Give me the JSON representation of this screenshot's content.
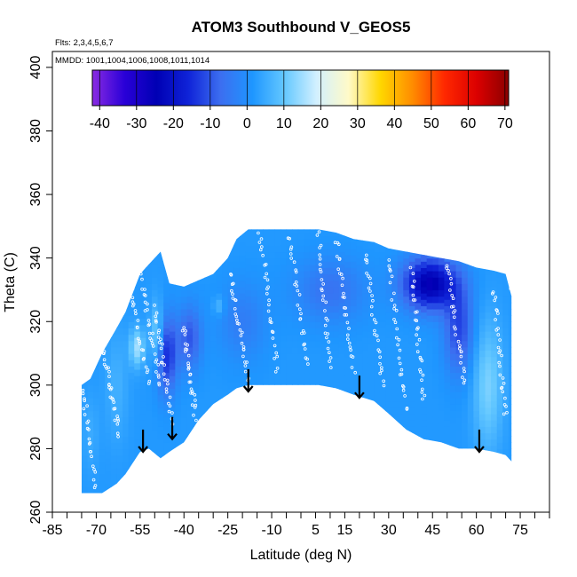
{
  "chart_data": {
    "type": "heatmap",
    "title": "ATOM3 Southbound V_GEOS5",
    "flights_note": "Flts: 2,3,4,5,6,7",
    "dates_note": "MMDD: 1001,1004,1006,1008,1011,1014",
    "xlabel": "Latitude (deg N)",
    "ylabel": "Theta (C)",
    "xlim": [
      -85,
      85
    ],
    "ylim": [
      260,
      405
    ],
    "x_tick_values": [
      -85,
      -70,
      -55,
      -40,
      -25,
      -10,
      5,
      15,
      30,
      45,
      60,
      75
    ],
    "x_tick_labels": [
      "-85",
      "-70",
      "-55",
      "-40",
      "-25",
      "-10",
      "5",
      "15",
      "30",
      "45",
      "60",
      "75"
    ],
    "x_minor_ticks": [
      -80,
      -75,
      -65,
      -60,
      -50,
      -45,
      -35,
      -30,
      -20,
      -15,
      -5,
      0,
      10,
      20,
      25,
      35,
      40,
      50,
      55,
      65,
      70,
      80,
      85
    ],
    "y_tick_values": [
      260,
      280,
      300,
      320,
      340,
      360,
      380,
      400
    ],
    "y_tick_labels": [
      "260",
      "280",
      "300",
      "320",
      "340",
      "360",
      "380",
      "400"
    ],
    "colorbar": {
      "min": -42,
      "max": 71,
      "tick_values": [
        -40,
        -30,
        -20,
        -10,
        0,
        10,
        20,
        30,
        40,
        50,
        60,
        70
      ],
      "tick_labels": [
        "-40",
        "-30",
        "-20",
        "-10",
        "0",
        "10",
        "20",
        "30",
        "40",
        "50",
        "60",
        "70"
      ],
      "colors": [
        "#8a2be2",
        "#2a00d8",
        "#0000b4",
        "#0f23d8",
        "#3c6ef0",
        "#1e96ff",
        "#64c8ff",
        "#d2f0ff",
        "#fffac8",
        "#ffd700",
        "#ff8c00",
        "#ff2800",
        "#dc0000",
        "#8b0000"
      ]
    },
    "domain": {
      "lat": [
        -75,
        -72,
        -68,
        -63,
        -60,
        -55,
        -52,
        -48,
        -45,
        -40,
        -35,
        -30,
        -25,
        -22,
        -18,
        -12,
        -6,
        0,
        6,
        12,
        18,
        25,
        30,
        36,
        42,
        48,
        54,
        60,
        66,
        70,
        72
      ],
      "theta_top": [
        300,
        302,
        310,
        318,
        323,
        335,
        338,
        342,
        332,
        331,
        333,
        335,
        340,
        346,
        349,
        349,
        349,
        349,
        349,
        348,
        346,
        345,
        343,
        342,
        341,
        340,
        339,
        337,
        336,
        335,
        328
      ],
      "theta_bottom": [
        266,
        266,
        266,
        269,
        272,
        279,
        280,
        277,
        279,
        282,
        289,
        294,
        297,
        299,
        300,
        300,
        300,
        300,
        300,
        299,
        297,
        295,
        291,
        286,
        283,
        282,
        280,
        280,
        279,
        278,
        276
      ]
    },
    "field_anomalies": [
      {
        "lat": 44,
        "theta": 332,
        "value": -26,
        "lat_radius": 9,
        "theta_radius": 8
      },
      {
        "lat": 54,
        "theta": 318,
        "value": -12,
        "lat_radius": 5,
        "theta_radius": 14
      },
      {
        "lat": -49,
        "theta": 316,
        "value": 14,
        "lat_radius": 2.5,
        "theta_radius": 10
      },
      {
        "lat": -56,
        "theta": 312,
        "value": 15,
        "lat_radius": 2.5,
        "theta_radius": 6
      },
      {
        "lat": -46,
        "theta": 310,
        "value": -16,
        "lat_radius": 3.5,
        "theta_radius": 12
      },
      {
        "lat": -38,
        "theta": 315,
        "value": -10,
        "lat_radius": 4,
        "theta_radius": 10
      },
      {
        "lat": -28,
        "theta": 325,
        "value": 8,
        "lat_radius": 2,
        "theta_radius": 3
      },
      {
        "lat": 64,
        "theta": 300,
        "value": 12,
        "lat_radius": 5,
        "theta_radius": 20
      },
      {
        "lat": -63,
        "theta": 300,
        "value": 6,
        "lat_radius": 4,
        "theta_radius": 18
      },
      {
        "lat": 10,
        "theta": 330,
        "value": -6,
        "lat_radius": 12,
        "theta_radius": 10
      },
      {
        "lat": -72,
        "theta": 285,
        "value": 5,
        "lat_radius": 3,
        "theta_radius": 12
      },
      {
        "lat": -20,
        "theta": 320,
        "value": -4,
        "lat_radius": 8,
        "theta_radius": 12
      }
    ],
    "arrows": [
      {
        "lat": -54,
        "theta_top": 286,
        "theta_tip": 279
      },
      {
        "lat": -44,
        "theta_top": 290,
        "theta_tip": 283
      },
      {
        "lat": -18,
        "theta_top": 305,
        "theta_tip": 298
      },
      {
        "lat": 20,
        "theta_top": 303,
        "theta_tip": 296
      },
      {
        "lat": 61,
        "theta_top": 286,
        "theta_tip": 279
      }
    ],
    "flight_tracks": [
      {
        "lat_start": -76,
        "theta_start": 308,
        "lat_end": -70,
        "theta_end": 268
      },
      {
        "lat_start": -68,
        "theta_start": 312,
        "lat_end": -62,
        "theta_end": 285
      },
      {
        "lat_start": -60,
        "theta_start": 340,
        "lat_end": -52,
        "theta_end": 300
      },
      {
        "lat_start": -55,
        "theta_start": 335,
        "lat_end": -48,
        "theta_end": 300
      },
      {
        "lat_start": -50,
        "theta_start": 325,
        "lat_end": -44,
        "theta_end": 288
      },
      {
        "lat_start": -40,
        "theta_start": 318,
        "lat_end": -36,
        "theta_end": 290
      },
      {
        "lat_start": -24,
        "theta_start": 335,
        "lat_end": -18,
        "theta_end": 302
      },
      {
        "lat_start": -14,
        "theta_start": 348,
        "lat_end": -8,
        "theta_end": 305
      },
      {
        "lat_start": -4,
        "theta_start": 349,
        "lat_end": 2,
        "theta_end": 306
      },
      {
        "lat_start": 6,
        "theta_start": 348,
        "lat_end": 10,
        "theta_end": 305
      },
      {
        "lat_start": 12,
        "theta_start": 346,
        "lat_end": 18,
        "theta_end": 305
      },
      {
        "lat_start": 22,
        "theta_start": 342,
        "lat_end": 28,
        "theta_end": 300
      },
      {
        "lat_start": 30,
        "theta_start": 340,
        "lat_end": 36,
        "theta_end": 292
      },
      {
        "lat_start": 38,
        "theta_start": 336,
        "lat_end": 42,
        "theta_end": 295
      },
      {
        "lat_start": 50,
        "theta_start": 338,
        "lat_end": 56,
        "theta_end": 300
      },
      {
        "lat_start": 66,
        "theta_start": 330,
        "lat_end": 70,
        "theta_end": 290
      }
    ]
  }
}
